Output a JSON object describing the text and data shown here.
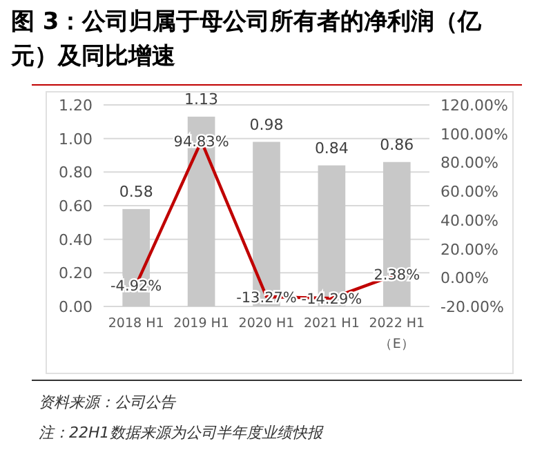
{
  "chart_data": {
    "type": "bar",
    "title": "图 3：公司归属于母公司所有者的净利润（亿元）及同比增速",
    "categories": [
      "2018 H1",
      "2019 H1",
      "2020 H1",
      "2021 H1",
      "2022 H1（E）"
    ],
    "series": [
      {
        "color": "#c8c8c8",
        "values": [
          0.58,
          1.13,
          0.98,
          0.84,
          0.86
        ],
        "value_labels": [
          "0.58",
          "1.13",
          "0.98",
          "0.84",
          "0.86"
        ]
      },
      {
        "type": "line",
        "axis": "y2",
        "color": "#c00000",
        "values": [
          -4.92,
          94.83,
          -13.27,
          -14.29,
          2.38
        ],
        "value_labels": [
          "-4.92%",
          "94.83%",
          "-13.27%",
          "-14.29%",
          "2.38%"
        ]
      }
    ],
    "ylim": [
      0,
      1.2
    ],
    "yticks": [
      {
        "value": 0,
        "label": "0.00"
      },
      {
        "value": 0.2,
        "label": "0.20"
      },
      {
        "value": 0.4,
        "label": "0.40"
      },
      {
        "value": 0.6,
        "label": "0.60"
      },
      {
        "value": 0.8,
        "label": "0.80"
      },
      {
        "value": 1,
        "label": "1.00"
      },
      {
        "value": 1.2,
        "label": "1.20"
      }
    ],
    "y2lim": [
      -20,
      120
    ],
    "y2ticks": [
      {
        "value": -20,
        "label": "-20.00%"
      },
      {
        "value": 0,
        "label": "0.00%"
      },
      {
        "value": 20,
        "label": "20.00%"
      },
      {
        "value": 40,
        "label": "40.00%"
      },
      {
        "value": 60,
        "label": "60.00%"
      },
      {
        "value": 80,
        "label": "80.00%"
      },
      {
        "value": 100,
        "label": "100.00%"
      },
      {
        "value": 120,
        "label": "120.00%"
      }
    ],
    "grid": "y",
    "annotations": [
      "资料来源：公司公告",
      "注：22H1数据来源为公司半年度业绩快报"
    ]
  }
}
